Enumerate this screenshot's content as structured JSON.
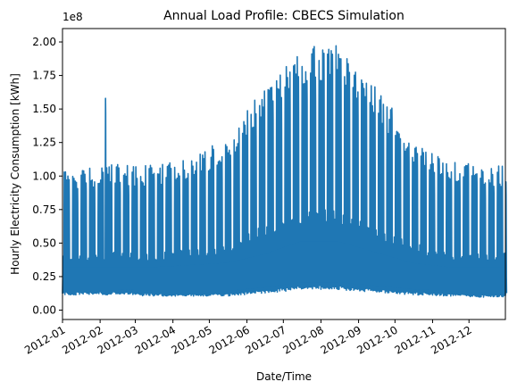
{
  "chart_data": {
    "type": "line",
    "title": "Annual Load Profile: CBECS Simulation",
    "xlabel": "Date/Time",
    "ylabel": "Hourly Electricity Consumption [kWh]",
    "y_multiplier_label": "1e8",
    "y_scale_factor": 100000000,
    "xlim": [
      "2012-01-01",
      "2012-12-31"
    ],
    "ylim": [
      -7000000,
      210000000
    ],
    "x_ticks": [
      "2012-01",
      "2012-02",
      "2012-03",
      "2012-04",
      "2012-05",
      "2012-06",
      "2012-07",
      "2012-08",
      "2012-09",
      "2012-10",
      "2012-11",
      "2012-12"
    ],
    "y_ticks": [
      {
        "value": 0,
        "label": "0.00"
      },
      {
        "value": 25000000,
        "label": "0.25"
      },
      {
        "value": 50000000,
        "label": "0.50"
      },
      {
        "value": 75000000,
        "label": "0.75"
      },
      {
        "value": 100000000,
        "label": "1.00"
      },
      {
        "value": 125000000,
        "label": "1.25"
      },
      {
        "value": 150000000,
        "label": "1.50"
      },
      {
        "value": 175000000,
        "label": "1.75"
      },
      {
        "value": 200000000,
        "label": "2.00"
      }
    ],
    "grid": false,
    "color": "#1f77b4",
    "series": [
      {
        "resolution": "daily",
        "points": [
          {
            "month": "2012-01",
            "daily_peak": 100000000,
            "daily_min": 12000000,
            "low_envelope": 20000000
          },
          {
            "month": "2012-02",
            "daily_peak": 103000000,
            "daily_min": 12000000,
            "low_envelope": 20000000,
            "spike": {
              "date": "2012-02-05",
              "value": 158000000
            }
          },
          {
            "month": "2012-03",
            "daily_peak": 102000000,
            "daily_min": 11000000,
            "low_envelope": 20000000
          },
          {
            "month": "2012-04",
            "daily_peak": 108000000,
            "daily_min": 11000000,
            "low_envelope": 21000000
          },
          {
            "month": "2012-05",
            "daily_peak": 122000000,
            "daily_min": 11000000,
            "low_envelope": 22000000
          },
          {
            "month": "2012-06",
            "daily_peak": 160000000,
            "daily_min": 13000000,
            "low_envelope": 26000000
          },
          {
            "month": "2012-07",
            "daily_peak": 185000000,
            "daily_min": 16000000,
            "low_envelope": 32000000
          },
          {
            "month": "2012-08",
            "daily_peak": 188000000,
            "daily_min": 16000000,
            "low_envelope": 32000000
          },
          {
            "month": "2012-09",
            "daily_peak": 158000000,
            "daily_min": 14000000,
            "low_envelope": 27000000
          },
          {
            "month": "2012-10",
            "daily_peak": 122000000,
            "daily_min": 12000000,
            "low_envelope": 22000000
          },
          {
            "month": "2012-11",
            "daily_peak": 105000000,
            "daily_min": 11000000,
            "low_envelope": 20000000
          },
          {
            "month": "2012-12",
            "daily_peak": 102000000,
            "daily_min": 10000000,
            "low_envelope": 20000000
          }
        ]
      }
    ]
  }
}
